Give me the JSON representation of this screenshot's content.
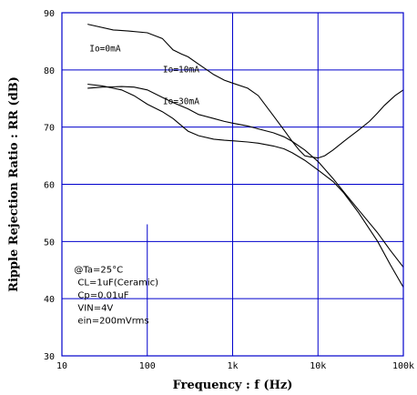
{
  "chart_data": {
    "type": "line",
    "xlabel": "Frequency : f (Hz)",
    "ylabel": "Ripple Rejection Ratio : RR (dB)",
    "xscale": "log",
    "xlim": [
      10,
      100000
    ],
    "ylim": [
      30,
      90
    ],
    "grid": true,
    "x_ticks": [
      "10",
      "100",
      "1k",
      "10k",
      "100k"
    ],
    "y_ticks": [
      "30",
      "40",
      "50",
      "60",
      "70",
      "80",
      "90"
    ],
    "series": [
      {
        "name": "Io=0mA",
        "x": [
          20,
          40,
          60,
          100,
          150,
          200,
          250,
          300,
          400,
          500,
          600,
          800,
          1000,
          1500,
          2000,
          3000,
          4000,
          5000,
          6000,
          7000,
          8000,
          10000,
          12000,
          15000,
          20000,
          30000,
          40000,
          50000,
          60000,
          80000,
          100000
        ],
        "values": [
          88,
          87,
          86.8,
          86.5,
          85.5,
          83.5,
          82.8,
          82.3,
          81,
          80,
          79.2,
          78.2,
          77.7,
          76.8,
          75.5,
          72,
          69.5,
          67.5,
          66,
          65,
          64.8,
          64.6,
          65,
          66,
          67.5,
          69.5,
          71,
          72.5,
          73.8,
          75.5,
          76.5
        ]
      },
      {
        "name": "Io=10mA",
        "x": [
          20,
          30,
          50,
          70,
          100,
          150,
          200,
          300,
          400,
          600,
          800,
          1000,
          1500,
          2000,
          3000,
          4000,
          5000,
          7000,
          10000,
          15000,
          20000,
          30000,
          50000,
          70000,
          100000
        ],
        "values": [
          76.8,
          77,
          77.1,
          77,
          76.5,
          75.2,
          74.3,
          73.2,
          72.2,
          71.5,
          71,
          70.7,
          70.2,
          69.7,
          69,
          68.3,
          67.5,
          66,
          64,
          61,
          58.7,
          55.5,
          51.5,
          48.5,
          45.5
        ]
      },
      {
        "name": "Io=30mA",
        "x": [
          20,
          30,
          50,
          70,
          100,
          150,
          200,
          300,
          400,
          600,
          800,
          1000,
          1500,
          2000,
          3000,
          4000,
          5000,
          7000,
          10000,
          15000,
          20000,
          30000,
          50000,
          70000,
          100000
        ],
        "values": [
          77.5,
          77.2,
          76.5,
          75.5,
          74,
          72.7,
          71.5,
          69.3,
          68.5,
          67.9,
          67.7,
          67.6,
          67.4,
          67.2,
          66.7,
          66.2,
          65.5,
          64.2,
          62.5,
          60.5,
          58.5,
          55,
          50,
          46,
          42
        ]
      }
    ],
    "annotation_lines": [
      "@Ta=25°C",
      "CL=1uF(Ceramic)",
      "Cp=0.01uF",
      "VIN=4V",
      "ein=200mVrms"
    ]
  }
}
